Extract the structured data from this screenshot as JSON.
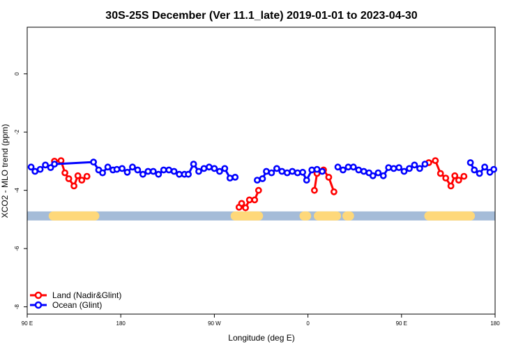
{
  "chart_data": {
    "type": "line",
    "title": "30S-25S December (Ver 11.1_late)   2019-01-01 to 2023-04-30",
    "xlabel": "Longitude (deg E)",
    "ylabel": "XCO2 - MLO trend (ppm)",
    "xlim": [
      90,
      450
    ],
    "ylim": [
      -8.25,
      1.6
    ],
    "x_ticks": [
      {
        "value": 90,
        "label": "90 E"
      },
      {
        "value": 162,
        "label": "180"
      },
      {
        "value": 234,
        "label": "90 W"
      },
      {
        "value": 306,
        "label": "0"
      },
      {
        "value": 378,
        "label": "90 E"
      },
      {
        "value": 450,
        "label": "180"
      }
    ],
    "y_ticks": [
      {
        "value": 0,
        "label": "0"
      },
      {
        "value": -2,
        "label": "-2"
      },
      {
        "value": -4,
        "label": "-4"
      },
      {
        "value": -6,
        "label": "-6"
      },
      {
        "value": -8,
        "label": "-8"
      }
    ],
    "band": {
      "y": -4.88,
      "ocean_color": "#a5bcd8",
      "land_color": "#fed87a",
      "land_segments": [
        [
          110,
          142
        ],
        [
          250,
          268
        ],
        [
          303,
          305
        ],
        [
          314,
          328
        ],
        [
          336,
          338
        ],
        [
          399,
          431
        ]
      ]
    },
    "series": [
      {
        "name": "Land (Nadir&Glint)",
        "color": "#ff0000",
        "segments": [
          [
            [
              111,
              -3.0
            ],
            [
              116,
              -2.98
            ],
            [
              119,
              -3.4
            ],
            [
              122,
              -3.6
            ],
            [
              126,
              -3.85
            ],
            [
              129,
              -3.5
            ],
            [
              132,
              -3.65
            ],
            [
              136,
              -3.52
            ]
          ],
          [
            [
              253,
              -4.58
            ],
            [
              255,
              -4.45
            ],
            [
              258,
              -4.6
            ],
            [
              261,
              -4.33
            ],
            [
              265,
              -4.33
            ],
            [
              268,
              -4.0
            ]
          ],
          [
            [
              311,
              -4.0
            ],
            [
              313,
              -3.42
            ],
            [
              318,
              -3.3
            ],
            [
              322,
              -3.55
            ],
            [
              326,
              -4.05
            ]
          ],
          [
            [
              399,
              -3.05
            ],
            [
              404,
              -2.98
            ],
            [
              408,
              -3.42
            ],
            [
              412,
              -3.58
            ],
            [
              416,
              -3.85
            ],
            [
              419,
              -3.5
            ],
            [
              422,
              -3.65
            ],
            [
              426,
              -3.52
            ]
          ]
        ]
      },
      {
        "name": "Ocean (Glint)",
        "color": "#0000ff",
        "segments": [
          [
            [
              93,
              -3.2
            ],
            [
              96,
              -3.35
            ],
            [
              100,
              -3.28
            ],
            [
              104,
              -3.13
            ],
            [
              108,
              -3.22
            ],
            [
              111,
              -3.1
            ],
            [
              141,
              -3.03
            ],
            [
              145,
              -3.3
            ],
            [
              148,
              -3.4
            ],
            [
              152,
              -3.2
            ],
            [
              156,
              -3.3
            ],
            [
              159,
              -3.28
            ],
            [
              163,
              -3.25
            ],
            [
              167,
              -3.38
            ],
            [
              171,
              -3.2
            ],
            [
              175,
              -3.3
            ],
            [
              179,
              -3.45
            ],
            [
              183,
              -3.35
            ],
            [
              187,
              -3.35
            ],
            [
              191,
              -3.45
            ],
            [
              195,
              -3.3
            ],
            [
              199,
              -3.3
            ],
            [
              203,
              -3.35
            ],
            [
              207,
              -3.45
            ],
            [
              211,
              -3.45
            ],
            [
              214,
              -3.45
            ],
            [
              218,
              -3.1
            ],
            [
              222,
              -3.35
            ],
            [
              226,
              -3.25
            ],
            [
              230,
              -3.2
            ],
            [
              234,
              -3.25
            ],
            [
              238,
              -3.35
            ],
            [
              242,
              -3.25
            ],
            [
              246,
              -3.58
            ],
            [
              250,
              -3.55
            ]
          ],
          [
            [
              267,
              -3.65
            ],
            [
              271,
              -3.6
            ],
            [
              274,
              -3.35
            ],
            [
              278,
              -3.4
            ],
            [
              282,
              -3.25
            ],
            [
              286,
              -3.35
            ],
            [
              290,
              -3.4
            ],
            [
              294,
              -3.35
            ],
            [
              298,
              -3.4
            ],
            [
              302,
              -3.38
            ],
            [
              305,
              -3.65
            ],
            [
              309,
              -3.3
            ],
            [
              313,
              -3.28
            ],
            [
              317,
              -3.35
            ]
          ],
          [
            [
              329,
              -3.2
            ],
            [
              333,
              -3.3
            ],
            [
              337,
              -3.2
            ],
            [
              341,
              -3.2
            ],
            [
              345,
              -3.3
            ],
            [
              349,
              -3.35
            ],
            [
              353,
              -3.4
            ],
            [
              356,
              -3.5
            ],
            [
              360,
              -3.4
            ],
            [
              364,
              -3.5
            ],
            [
              368,
              -3.22
            ],
            [
              372,
              -3.25
            ],
            [
              376,
              -3.22
            ],
            [
              380,
              -3.35
            ],
            [
              384,
              -3.25
            ],
            [
              388,
              -3.13
            ],
            [
              392,
              -3.25
            ],
            [
              396,
              -3.1
            ]
          ],
          [
            [
              431,
              -3.05
            ],
            [
              434,
              -3.3
            ],
            [
              438,
              -3.42
            ],
            [
              442,
              -3.2
            ],
            [
              446,
              -3.38
            ],
            [
              449,
              -3.28
            ]
          ]
        ]
      }
    ],
    "legend_position": "bottom-left"
  }
}
